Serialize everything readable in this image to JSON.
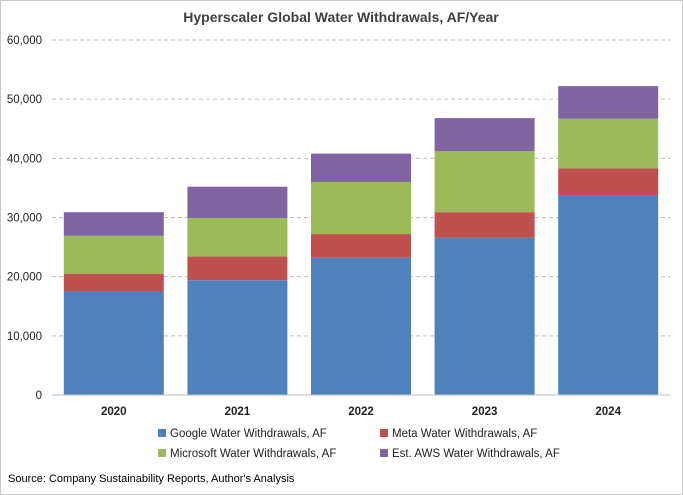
{
  "chart_data": {
    "type": "bar",
    "stacked": true,
    "title": "Hyperscaler Global Water Withdrawals, AF/Year",
    "xlabel": "",
    "ylabel": "",
    "ylim": [
      0,
      60000
    ],
    "yticks": [
      0,
      10000,
      20000,
      30000,
      40000,
      50000,
      60000
    ],
    "ytick_labels": [
      "0",
      "10,000",
      "20,000",
      "30,000",
      "40,000",
      "50,000",
      "60,000"
    ],
    "grid": true,
    "legend_position": "bottom",
    "categories": [
      "2020",
      "2021",
      "2022",
      "2023",
      "2024"
    ],
    "series": [
      {
        "name": "Google Water Withdrawals, AF",
        "color": "#4F81BD",
        "values": [
          17500,
          19400,
          23200,
          26600,
          33800
        ]
      },
      {
        "name": "Meta Water Withdrawals, AF",
        "color": "#C0504D",
        "values": [
          3000,
          4000,
          4000,
          4300,
          4500
        ]
      },
      {
        "name": "Microsoft Water Withdrawals, AF",
        "color": "#9BBB59",
        "values": [
          6400,
          6500,
          8800,
          10300,
          8400
        ]
      },
      {
        "name": "Est. AWS Water Withdrawals, AF",
        "color": "#8064A2",
        "values": [
          4000,
          5300,
          4800,
          5600,
          5500
        ]
      }
    ],
    "source": "Source: Company Sustainability Reports, Author's Analysis"
  }
}
